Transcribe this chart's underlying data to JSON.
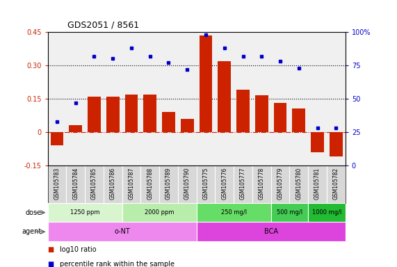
{
  "title": "GDS2051 / 8561",
  "samples": [
    "GSM105783",
    "GSM105784",
    "GSM105785",
    "GSM105786",
    "GSM105787",
    "GSM105788",
    "GSM105789",
    "GSM105790",
    "GSM105775",
    "GSM105776",
    "GSM105777",
    "GSM105778",
    "GSM105779",
    "GSM105780",
    "GSM105781",
    "GSM105782"
  ],
  "log10_ratio": [
    -0.06,
    0.03,
    0.16,
    0.16,
    0.17,
    0.17,
    0.09,
    0.06,
    0.435,
    0.32,
    0.19,
    0.165,
    0.13,
    0.105,
    -0.09,
    -0.11
  ],
  "percentile": [
    0.33,
    0.47,
    0.82,
    0.8,
    0.88,
    0.82,
    0.77,
    0.72,
    0.98,
    0.88,
    0.82,
    0.82,
    0.78,
    0.73,
    0.28,
    0.28
  ],
  "bar_color": "#cc2200",
  "dot_color": "#0000cc",
  "yticks_left": [
    -0.15,
    0.0,
    0.15,
    0.3,
    0.45
  ],
  "yticks_right": [
    0,
    25,
    50,
    75,
    100
  ],
  "hlines": [
    0.15,
    0.3
  ],
  "ymin": -0.15,
  "ymax": 0.45,
  "dose_groups": [
    {
      "label": "1250 ppm",
      "start": 0,
      "end": 4,
      "color": "#d8f5d0"
    },
    {
      "label": "2000 ppm",
      "start": 4,
      "end": 8,
      "color": "#b8edac"
    },
    {
      "label": "250 mg/l",
      "start": 8,
      "end": 12,
      "color": "#66dd66"
    },
    {
      "label": "500 mg/l",
      "start": 12,
      "end": 14,
      "color": "#44cc55"
    },
    {
      "label": "1000 mg/l",
      "start": 14,
      "end": 16,
      "color": "#22bb33"
    }
  ],
  "agent_groups": [
    {
      "label": "o-NT",
      "start": 0,
      "end": 8,
      "color": "#ee88ee"
    },
    {
      "label": "BCA",
      "start": 8,
      "end": 16,
      "color": "#dd44dd"
    }
  ],
  "legend_bar_label": "log10 ratio",
  "legend_dot_label": "percentile rank within the sample",
  "dose_label": "dose",
  "agent_label": "agent",
  "background_color": "#ffffff",
  "plot_bg_color": "#f0f0f0",
  "tick_bg_color": "#d8d8d8"
}
